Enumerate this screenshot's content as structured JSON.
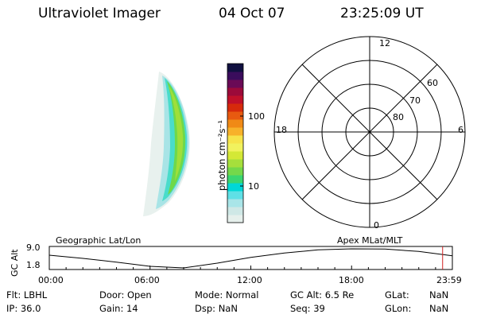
{
  "header": {
    "title": "Ultraviolet Imager",
    "date": "04 Oct 07",
    "time": "23:25:09 UT"
  },
  "colorbar": {
    "unit_label": "photon cm⁻²s⁻¹",
    "ticks": [
      {
        "label": "100",
        "value": 100
      },
      {
        "label": "10",
        "value": 10
      }
    ],
    "colors": [
      "#e6f0ec",
      "#cfe8e6",
      "#a9e5e8",
      "#5fe0e6",
      "#00d7d7",
      "#3ad66f",
      "#74d84a",
      "#a6df3c",
      "#d4e836",
      "#f1f25e",
      "#f6e44a",
      "#f7b22a",
      "#f08a16",
      "#e85a10",
      "#d62a0c",
      "#c0102a",
      "#9c0a3a",
      "#6a0a56",
      "#3a0c5c",
      "#101040"
    ]
  },
  "polar_grid": {
    "mlt_labels": {
      "top": "12",
      "left": "18",
      "right": "6",
      "bottom": "0"
    },
    "mlat_labels": [
      "60",
      "70",
      "80"
    ]
  },
  "timeline": {
    "ylabel": "GC Alt",
    "ymax_label": "9.0",
    "ymin_label": "1.8",
    "left_title": "Geographic Lat/Lon",
    "right_title": "Apex  MLat/MLT",
    "time_ticks": [
      "00:00",
      "06:00",
      "12:00",
      "18:00",
      "23:59"
    ],
    "current_marker_hour": 23.42,
    "alt_series": [
      {
        "h": 0.0,
        "alt": 6.6
      },
      {
        "h": 2.0,
        "alt": 5.4
      },
      {
        "h": 4.0,
        "alt": 4.0
      },
      {
        "h": 6.0,
        "alt": 2.4
      },
      {
        "h": 8.0,
        "alt": 1.8
      },
      {
        "h": 10.0,
        "alt": 3.6
      },
      {
        "h": 12.0,
        "alt": 5.8
      },
      {
        "h": 14.0,
        "alt": 7.4
      },
      {
        "h": 16.0,
        "alt": 8.6
      },
      {
        "h": 18.0,
        "alt": 9.0
      },
      {
        "h": 20.0,
        "alt": 8.9
      },
      {
        "h": 22.0,
        "alt": 8.0
      },
      {
        "h": 24.0,
        "alt": 6.4
      }
    ]
  },
  "info": {
    "flt_label": "Flt:",
    "flt_value": "LBHL",
    "door_label": "Door:",
    "door_value": "Open",
    "mode_label": "Mode:",
    "mode_value": "Normal",
    "gcalt_label": "GC Alt:",
    "gcalt_value": "6.5 Re",
    "glat_label": "GLat:",
    "glat_value": "NaN",
    "ip_label": "IP:",
    "ip_value": "36.0",
    "gain_label": "Gain:",
    "gain_value": "14",
    "dsp_label": "Dsp:",
    "dsp_value": "NaN",
    "seq_label": "Seq:",
    "seq_value": "39",
    "glon_label": "GLon:",
    "glon_value": "NaN"
  }
}
